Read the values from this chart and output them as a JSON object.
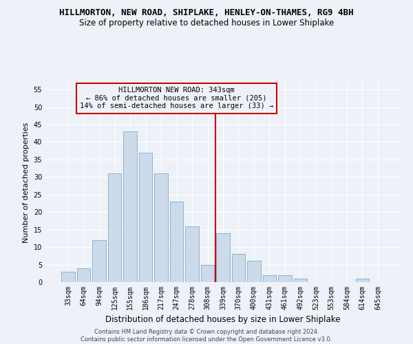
{
  "title": "HILLMORTON, NEW ROAD, SHIPLAKE, HENLEY-ON-THAMES, RG9 4BH",
  "subtitle": "Size of property relative to detached houses in Lower Shiplake",
  "xlabel": "Distribution of detached houses by size in Lower Shiplake",
  "ylabel": "Number of detached properties",
  "footer_line1": "Contains HM Land Registry data © Crown copyright and database right 2024.",
  "footer_line2": "Contains public sector information licensed under the Open Government Licence v3.0.",
  "bar_labels": [
    "33sqm",
    "64sqm",
    "94sqm",
    "125sqm",
    "155sqm",
    "186sqm",
    "217sqm",
    "247sqm",
    "278sqm",
    "308sqm",
    "339sqm",
    "370sqm",
    "400sqm",
    "431sqm",
    "461sqm",
    "492sqm",
    "523sqm",
    "553sqm",
    "584sqm",
    "614sqm",
    "645sqm"
  ],
  "bar_values": [
    3,
    4,
    12,
    31,
    43,
    37,
    31,
    23,
    16,
    5,
    14,
    8,
    6,
    2,
    2,
    1,
    0,
    0,
    0,
    1,
    0
  ],
  "bar_color": "#ccdaea",
  "bar_edgecolor": "#8ab4d0",
  "background_color": "#eef2f8",
  "grid_color": "#ffffff",
  "vline_x_index": 9.5,
  "vline_color": "#cc0000",
  "annotation_text": "HILLMORTON NEW ROAD: 343sqm\n← 86% of detached houses are smaller (205)\n14% of semi-detached houses are larger (33) →",
  "annotation_box_edgecolor": "#cc0000",
  "ylim": [
    0,
    57
  ],
  "yticks": [
    0,
    5,
    10,
    15,
    20,
    25,
    30,
    35,
    40,
    45,
    50,
    55
  ],
  "title_fontsize": 9,
  "subtitle_fontsize": 8.5,
  "xlabel_fontsize": 8.5,
  "ylabel_fontsize": 8,
  "tick_fontsize": 7,
  "annotation_fontsize": 7.5,
  "footer_fontsize": 6
}
